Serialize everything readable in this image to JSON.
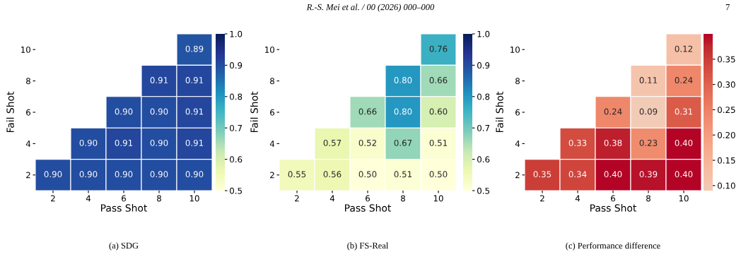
{
  "chart_data": [
    {
      "type": "heatmap",
      "xlabel": "Pass Shot",
      "ylabel": "Fail Shot",
      "categories": [
        "2",
        "4",
        "6",
        "8",
        "10"
      ],
      "y_categories": [
        "10",
        "8",
        "6",
        "4",
        "2"
      ],
      "cells": [
        [
          null,
          null,
          null,
          null,
          0.89
        ],
        [
          null,
          null,
          null,
          0.91,
          0.91
        ],
        [
          null,
          null,
          0.9,
          0.9,
          0.91
        ],
        [
          null,
          0.9,
          0.91,
          0.9,
          0.91
        ],
        [
          0.9,
          0.9,
          0.9,
          0.9,
          0.9
        ]
      ],
      "cell_labels": [
        [
          null,
          null,
          null,
          null,
          "0.89"
        ],
        [
          null,
          null,
          null,
          "0.91",
          "0.91"
        ],
        [
          null,
          null,
          "0.90",
          "0.90",
          "0.91"
        ],
        [
          null,
          "0.90",
          "0.91",
          "0.90",
          "0.91"
        ],
        [
          "0.90",
          "0.90",
          "0.90",
          "0.90",
          "0.90"
        ]
      ],
      "data_labels": true,
      "clim": [
        0.5,
        1.0
      ],
      "cticks": [
        0.5,
        0.6,
        0.7,
        0.8,
        0.9,
        {
          "value": 1.0,
          "label": "1.0"
        }
      ],
      "annotations": [
        "(a) SDG",
        "R.-S. Mei et al. / 00 (2026) 000–000",
        "7"
      ]
    },
    {
      "type": "heatmap",
      "xlabel": "Pass Shot",
      "ylabel": "Fail Shot",
      "categories": [
        "2",
        "4",
        "6",
        "8",
        "10"
      ],
      "y_categories": [
        "10",
        "8",
        "6",
        "4",
        "2"
      ],
      "cells": [
        [
          null,
          null,
          null,
          null,
          0.76
        ],
        [
          null,
          null,
          null,
          0.8,
          0.66
        ],
        [
          null,
          null,
          0.66,
          0.8,
          0.6
        ],
        [
          null,
          0.57,
          0.52,
          0.67,
          0.51
        ],
        [
          0.55,
          0.56,
          0.5,
          0.51,
          0.5
        ]
      ],
      "cell_labels": [
        [
          null,
          null,
          null,
          null,
          "0.76"
        ],
        [
          null,
          null,
          null,
          "0.80",
          "0.66"
        ],
        [
          null,
          null,
          "0.66",
          "0.80",
          "0.60"
        ],
        [
          null,
          "0.57",
          "0.52",
          "0.67",
          "0.51"
        ],
        [
          "0.55",
          "0.56",
          "0.50",
          "0.51",
          "0.50"
        ]
      ],
      "data_labels": true,
      "clim": [
        0.5,
        1.0
      ],
      "cticks": [
        0.5,
        0.6,
        0.7,
        0.8,
        0.9,
        {
          "value": 1.0,
          "label": "1.0"
        }
      ],
      "annotations": [
        "(b) FS-Real"
      ]
    },
    {
      "type": "heatmap",
      "xlabel": "Pass Shot",
      "ylabel": "Fail Shot",
      "categories": [
        "2",
        "4",
        "6",
        "8",
        "10"
      ],
      "y_categories": [
        "10",
        "8",
        "6",
        "4",
        "2"
      ],
      "cells": [
        [
          null,
          null,
          null,
          null,
          0.12
        ],
        [
          null,
          null,
          null,
          0.11,
          0.24
        ],
        [
          null,
          null,
          0.24,
          0.09,
          0.31
        ],
        [
          null,
          0.33,
          0.38,
          0.23,
          0.4
        ],
        [
          0.35,
          0.34,
          0.4,
          0.39,
          0.4
        ]
      ],
      "cell_labels": [
        [
          null,
          null,
          null,
          null,
          "0.12"
        ],
        [
          null,
          null,
          null,
          "0.11",
          "0.24"
        ],
        [
          null,
          null,
          "0.24",
          "0.09",
          "0.31"
        ],
        [
          null,
          "0.33",
          "0.38",
          "0.23",
          "0.40"
        ],
        [
          "0.35",
          "0.34",
          "0.40",
          "0.39",
          "0.40"
        ]
      ],
      "data_labels": true,
      "clim": [
        0.09,
        0.4
      ],
      "cticks": [
        {
          "value": 0.1,
          "label": "0.10"
        },
        0.15,
        {
          "value": 0.2,
          "label": "0.20"
        },
        0.25,
        {
          "value": 0.3,
          "label": "0.30"
        },
        0.35
      ],
      "annotations": [
        "(c) Performance difference"
      ]
    }
  ]
}
